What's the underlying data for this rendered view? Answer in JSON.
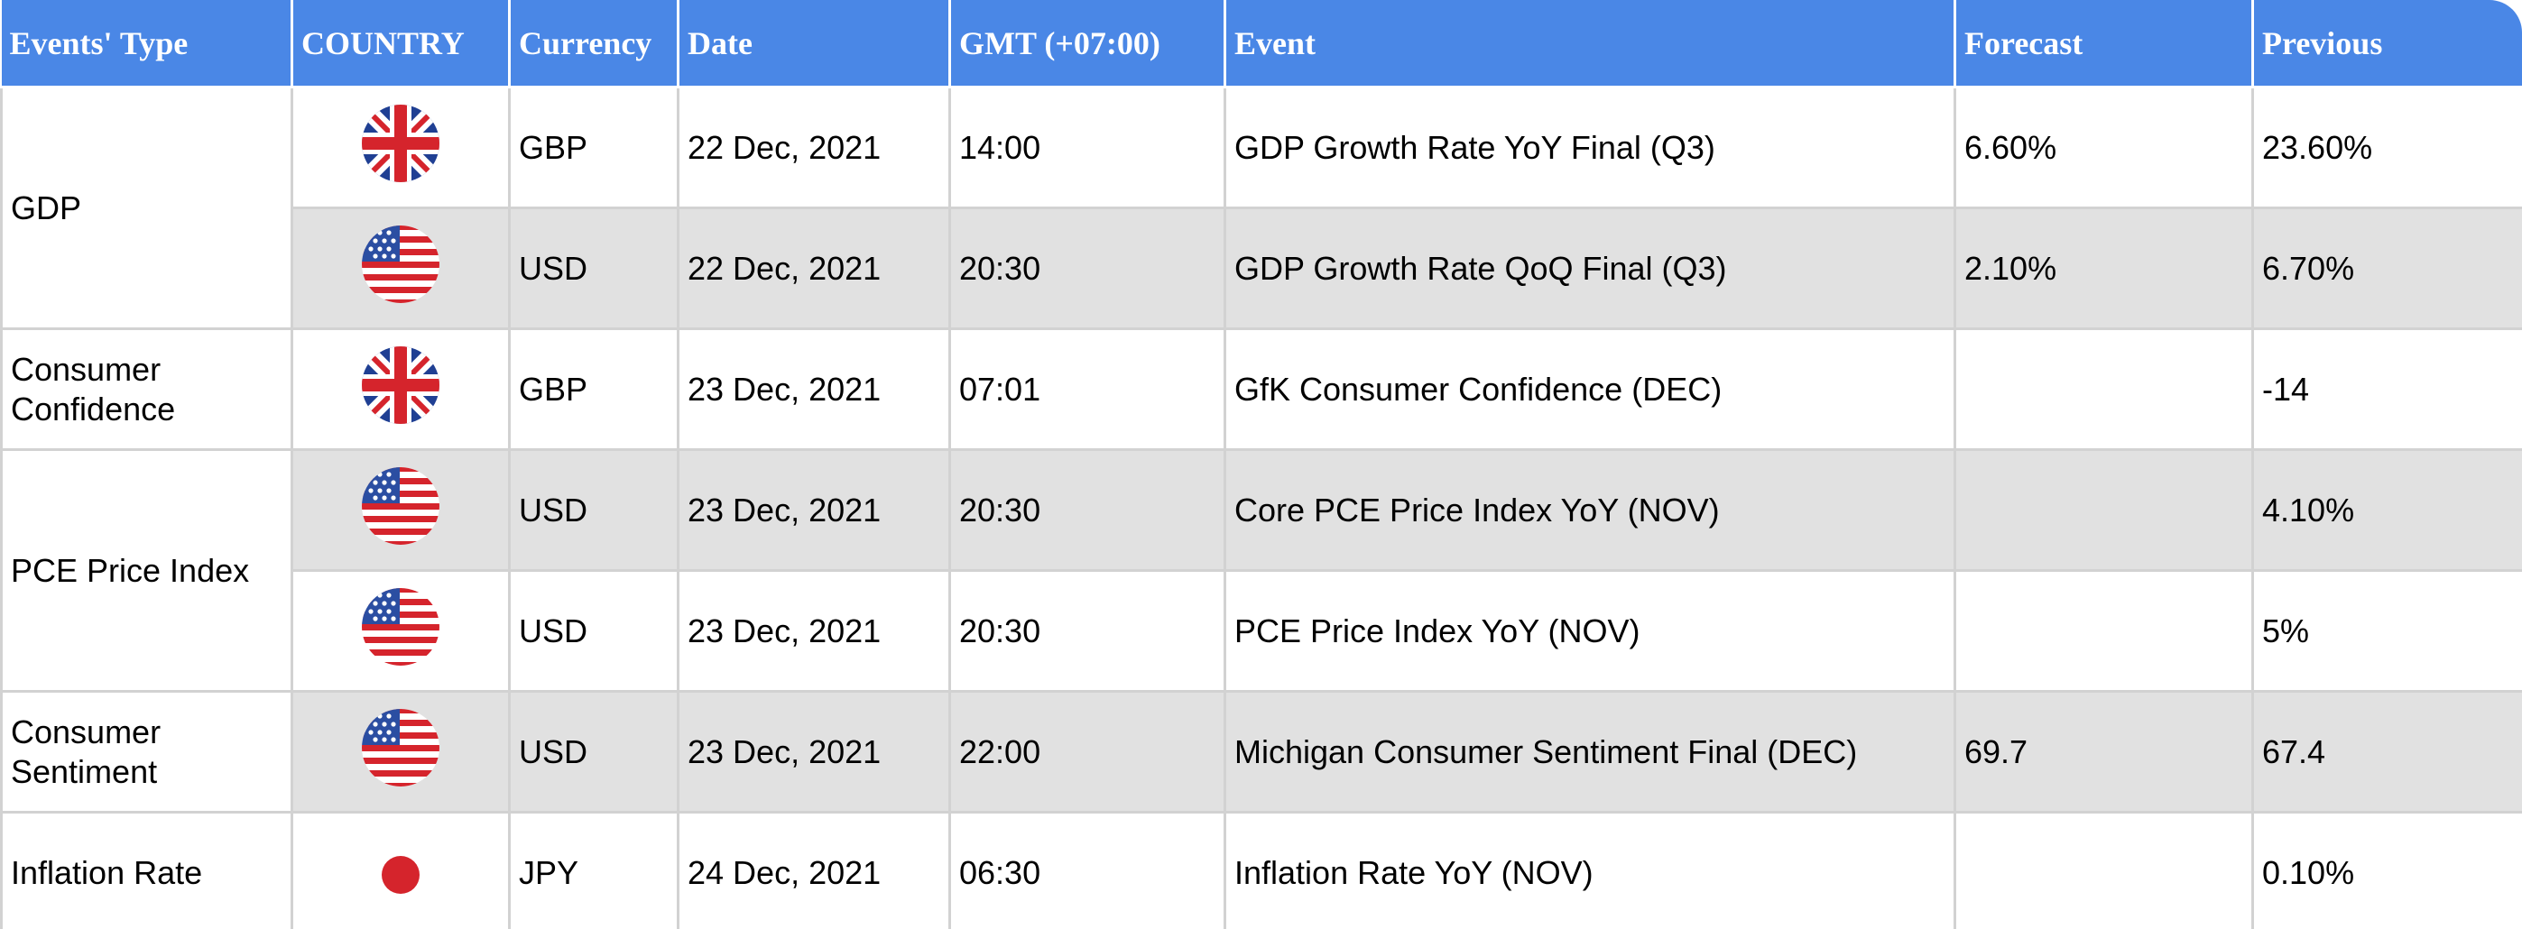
{
  "columns": [
    "Events' Type",
    "COUNTRY",
    "Currency",
    "Date",
    "GMT (+07:00)",
    "Event",
    "Forecast",
    "Previous"
  ],
  "groups": [
    {
      "type": "GDP"
    },
    {
      "type": "Consumer Confidence"
    },
    {
      "type": "PCE Price Index"
    },
    {
      "type": "Consumer Sentiment"
    },
    {
      "type": "Inflation Rate"
    }
  ],
  "rows": [
    {
      "flag": "uk-flag-icon",
      "currency": "GBP",
      "date": "22 Dec, 2021",
      "time": "14:00",
      "event": "GDP Growth Rate YoY Final (Q3)",
      "forecast": "6.60%",
      "previous": "23.60%"
    },
    {
      "flag": "us-flag-icon",
      "currency": "USD",
      "date": "22 Dec, 2021",
      "time": "20:30",
      "event": "GDP Growth Rate QoQ Final (Q3)",
      "forecast": "2.10%",
      "previous": "6.70%"
    },
    {
      "flag": "uk-flag-icon",
      "currency": "GBP",
      "date": "23 Dec, 2021",
      "time": "07:01",
      "event": "GfK Consumer Confidence (DEC)",
      "forecast": "",
      "previous": "-14"
    },
    {
      "flag": "us-flag-icon",
      "currency": "USD",
      "date": "23 Dec, 2021",
      "time": "20:30",
      "event": "Core PCE Price Index YoY (NOV)",
      "forecast": "",
      "previous": "4.10%"
    },
    {
      "flag": "us-flag-icon",
      "currency": "USD",
      "date": "23 Dec, 2021",
      "time": "20:30",
      "event": "PCE Price Index YoY (NOV)",
      "forecast": "",
      "previous": "5%"
    },
    {
      "flag": "us-flag-icon",
      "currency": "USD",
      "date": "23 Dec, 2021",
      "time": "22:00",
      "event": "Michigan Consumer Sentiment Final (DEC)",
      "forecast": "69.7",
      "previous": "67.4"
    },
    {
      "flag": "japan-flag-icon",
      "currency": "JPY",
      "date": "24 Dec, 2021",
      "time": "06:30",
      "event": "Inflation Rate YoY (NOV)",
      "forecast": "",
      "previous": "0.10%"
    }
  ],
  "colors": {
    "header_bg": "#4a87e6",
    "row_alt": "#e1e1e1",
    "border": "#d2d2d2"
  }
}
